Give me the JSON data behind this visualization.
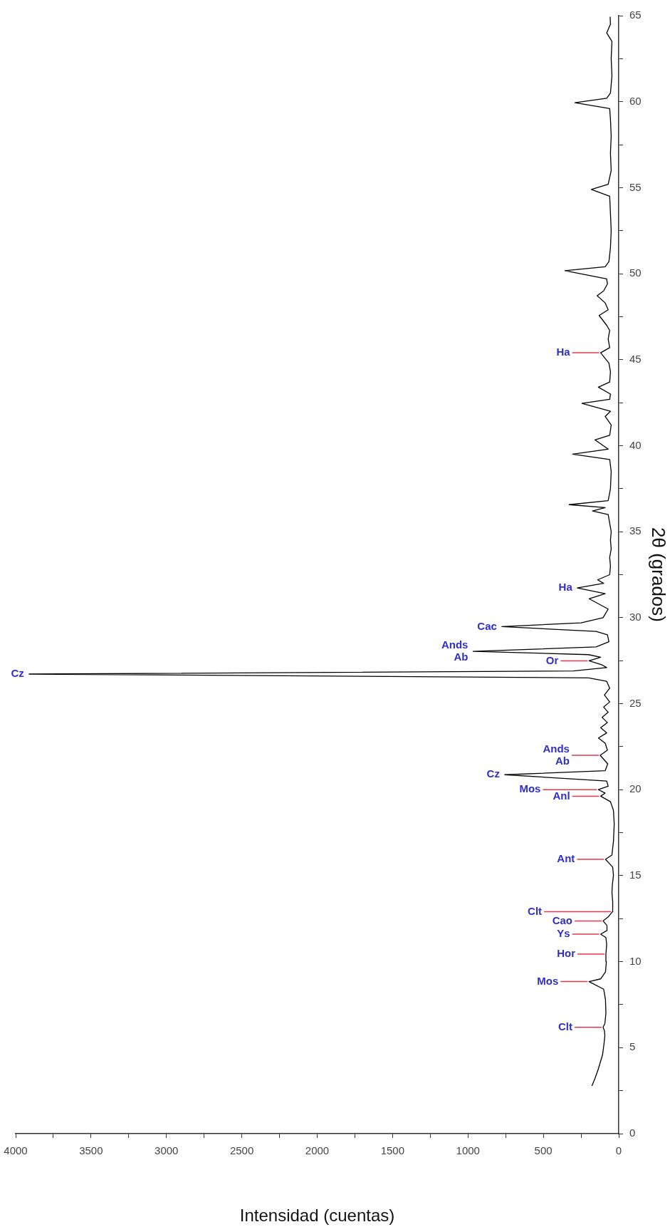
{
  "chart_data": {
    "type": "line",
    "xlabel": "Intensidad (cuentas)",
    "ylabel": "2θ (grados)",
    "legend": false,
    "grid": false,
    "xlim": [
      4000,
      0
    ],
    "ylim": [
      0,
      65
    ],
    "xticks": [
      0,
      {
        "value": 250,
        "label": null
      },
      500,
      {
        "value": 750,
        "label": null
      },
      1000,
      {
        "value": 1250,
        "label": null
      },
      1500,
      {
        "value": 1750,
        "label": null
      },
      2000,
      {
        "value": 2250,
        "label": null
      },
      2500,
      {
        "value": 2750,
        "label": null
      },
      3000,
      {
        "value": 3250,
        "label": null
      },
      3500,
      {
        "value": 3750,
        "label": null
      },
      4000
    ],
    "yticks": [
      0,
      {
        "value": 2.5,
        "label": null
      },
      5,
      {
        "value": 7.5,
        "label": null
      },
      10,
      {
        "value": 12.5,
        "label": null
      },
      15,
      {
        "value": 17.5,
        "label": null
      },
      20,
      {
        "value": 22.5,
        "label": null
      },
      25,
      {
        "value": 27.5,
        "label": null
      },
      30,
      {
        "value": 32.5,
        "label": null
      },
      35,
      {
        "value": 37.5,
        "label": null
      },
      40,
      {
        "value": 42.5,
        "label": null
      },
      45,
      {
        "value": 47.5,
        "label": null
      },
      50,
      {
        "value": 52.5,
        "label": null
      },
      55,
      {
        "value": 57.5,
        "label": null
      },
      60,
      {
        "value": 62.5,
        "label": null
      },
      65
    ],
    "x": [
      178,
      158,
      135,
      107,
      98,
      92,
      95,
      104,
      92,
      85,
      88,
      100,
      197,
      120,
      88,
      82,
      85,
      80,
      85,
      120,
      80,
      78,
      104,
      70,
      42,
      40,
      45,
      42,
      35,
      40,
      88,
      45,
      35,
      30,
      35,
      55,
      120,
      90,
      135,
      70,
      80,
      756,
      90,
      73,
      123,
      75,
      90,
      135,
      80,
      120,
      75,
      110,
      70,
      100,
      60,
      95,
      60,
      80,
      200,
      3911,
      300,
      80,
      110,
      197,
      120,
      200,
      966,
      150,
      65,
      75,
      150,
      775,
      250,
      104,
      70,
      197,
      90,
      275,
      100,
      140,
      60,
      55,
      60,
      50,
      55,
      50,
      60,
      70,
      174,
      90,
      329,
      70,
      55,
      50,
      60,
      306,
      70,
      158,
      60,
      50,
      90,
      55,
      244,
      60,
      55,
      135,
      60,
      55,
      65,
      120,
      60,
      70,
      60,
      80,
      130,
      70,
      90,
      143,
      100,
      75,
      80,
      357,
      90,
      65,
      55,
      50,
      55,
      60,
      182,
      70,
      50,
      55,
      50,
      55,
      60,
      290,
      80,
      55,
      45,
      50,
      45,
      80,
      55,
      57
    ],
    "series": [
      {
        "color": "#000000",
        "values": [
          2.78,
          3.2,
          3.77,
          4.6,
          5.2,
          5.7,
          6.0,
          6.18,
          6.4,
          7.0,
          7.8,
          8.4,
          8.84,
          9.0,
          9.4,
          10.0,
          10.44,
          11.0,
          11.4,
          11.6,
          11.8,
          12.1,
          12.37,
          12.6,
          12.9,
          13.5,
          14.0,
          14.5,
          15.0,
          15.5,
          15.95,
          16.2,
          17.0,
          18.0,
          18.8,
          19.3,
          19.62,
          19.8,
          20.0,
          20.2,
          20.5,
          20.87,
          21.1,
          21.5,
          22.0,
          22.3,
          22.7,
          23.0,
          23.3,
          23.6,
          23.9,
          24.2,
          24.5,
          24.8,
          25.1,
          25.5,
          25.9,
          26.3,
          26.5,
          26.72,
          26.9,
          27.1,
          27.25,
          27.49,
          27.7,
          27.85,
          28.04,
          28.3,
          28.6,
          29.0,
          29.2,
          29.48,
          29.7,
          30.0,
          30.5,
          31.1,
          31.4,
          31.73,
          32.0,
          32.2,
          32.5,
          33.0,
          33.5,
          34.0,
          34.5,
          35.0,
          35.5,
          36.0,
          36.2,
          36.4,
          36.57,
          36.8,
          37.5,
          38.5,
          39.2,
          39.51,
          39.8,
          40.34,
          40.6,
          41.2,
          41.7,
          42.0,
          42.46,
          42.7,
          43.0,
          43.4,
          43.7,
          44.3,
          44.8,
          45.4,
          45.7,
          46.2,
          46.7,
          47.0,
          47.57,
          47.9,
          48.3,
          48.72,
          49.0,
          49.4,
          49.7,
          50.17,
          50.4,
          50.7,
          51.5,
          52.5,
          53.5,
          54.5,
          54.9,
          55.2,
          56,
          57,
          58,
          59,
          59.6,
          59.94,
          60.2,
          60.5,
          61.5,
          62.5,
          63.5,
          64.0,
          64.5,
          64.94
        ]
      }
    ],
    "annotations": [
      {
        "text": "Clt",
        "x": 104,
        "y": 6.18
      },
      {
        "text": "Mos",
        "x": 197,
        "y": 8.84
      },
      {
        "text": "Hor",
        "x": 85,
        "y": 10.44
      },
      {
        "text": "Ys",
        "x": 120,
        "y": 11.6
      },
      {
        "text": "Cao",
        "x": 104,
        "y": 12.37
      },
      {
        "text": "Clt",
        "x": 42,
        "y": 12.9
      },
      {
        "text": "Ant",
        "x": 88,
        "y": 15.95
      },
      {
        "text": "Anl",
        "x": 120,
        "y": 19.62
      },
      {
        "text": "Mos",
        "x": 135,
        "y": 20.0
      },
      {
        "text": "Cz",
        "x": 756,
        "y": 20.87
      },
      {
        "text": "Ands\nAb",
        "x": 123,
        "y": 22.0
      },
      {
        "text": "Cz",
        "x": 3911,
        "y": 26.72
      },
      {
        "text": "Or",
        "x": 197,
        "y": 27.49
      },
      {
        "text": "Ands\nAb",
        "x": 966,
        "y": 28.04
      },
      {
        "text": "Cac",
        "x": 775,
        "y": 29.48
      },
      {
        "text": "Ha",
        "x": 275,
        "y": 31.73
      },
      {
        "text": "Ha",
        "x": 120,
        "y": 45.4
      }
    ]
  }
}
